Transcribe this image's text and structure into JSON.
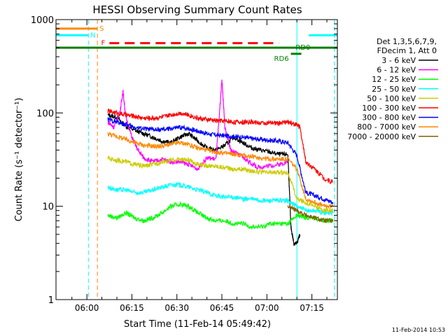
{
  "chart_data": {
    "type": "line",
    "title": "HESSI Observing Summary Count Rates",
    "xlabel": "Start Time (11-Feb-14 05:49:42)",
    "ylabel": "Count Rate (s⁻¹ detector⁻¹)",
    "yscale": "log",
    "ylim": [
      1,
      1000
    ],
    "xlim_minutes": [
      349.7,
      443.5
    ],
    "x_ticks": [
      {
        "label": "06:00",
        "minutes": 360
      },
      {
        "label": "06:15",
        "minutes": 375
      },
      {
        "label": "06:30",
        "minutes": 390
      },
      {
        "label": "06:45",
        "minutes": 405
      },
      {
        "label": "07:00",
        "minutes": 420
      },
      {
        "label": "07:15",
        "minutes": 435
      }
    ],
    "y_ticks": [
      {
        "label": "1",
        "value": 1
      },
      {
        "label": "10",
        "value": 10
      },
      {
        "label": "100",
        "value": 100
      },
      {
        "label": "1000",
        "value": 1000
      }
    ],
    "legend_header": [
      "Det 1,3,5,6,7,9,",
      "FDecim 1, Att 0"
    ],
    "legend_position": "right",
    "series": [
      {
        "name": "3 - 6 keV",
        "color": "#000000",
        "x": [
          367,
          370,
          373,
          376,
          379,
          382,
          385,
          388,
          391,
          394,
          397,
          400,
          403,
          406,
          409,
          412,
          415,
          418,
          421,
          424,
          427,
          428,
          429,
          430,
          431
        ],
        "y": [
          95,
          90,
          72,
          65,
          60,
          55,
          50,
          48,
          55,
          60,
          50,
          42,
          40,
          45,
          55,
          48,
          42,
          40,
          38,
          36,
          36,
          6,
          4,
          4,
          5
        ]
      },
      {
        "name": "6 - 12 keV",
        "color": "#ff00ff",
        "x": [
          367,
          369,
          371,
          372,
          373,
          375,
          377,
          379,
          382,
          385,
          388,
          391,
          394,
          397,
          400,
          403,
          404,
          405,
          406,
          408,
          411,
          414,
          417,
          420,
          424,
          427
        ],
        "y": [
          80,
          70,
          100,
          170,
          90,
          55,
          40,
          33,
          30,
          32,
          30,
          30,
          28,
          25,
          33,
          32,
          80,
          230,
          70,
          40,
          35,
          30,
          26,
          27,
          28,
          30
        ]
      },
      {
        "name": "12 - 25 keV",
        "color": "#00ff00",
        "x": [
          367,
          370,
          373,
          376,
          379,
          382,
          385,
          388,
          391,
          394,
          397,
          400,
          403,
          406,
          409,
          412,
          415,
          418,
          421,
          424,
          427,
          430,
          433,
          436,
          439,
          442
        ],
        "y": [
          8,
          7.5,
          8.5,
          7.5,
          7,
          7.5,
          8.5,
          10,
          10.5,
          10,
          8.5,
          7.5,
          7,
          7,
          6.5,
          6.5,
          6,
          6,
          6.5,
          6.5,
          6.5,
          8,
          7.5,
          7.5,
          7,
          7
        ]
      },
      {
        "name": "25 - 50 keV",
        "color": "#00ffff",
        "x": [
          367,
          370,
          373,
          376,
          379,
          382,
          385,
          388,
          391,
          394,
          397,
          400,
          403,
          406,
          409,
          412,
          415,
          418,
          421,
          424,
          427,
          430,
          433,
          436,
          439,
          442
        ],
        "y": [
          16,
          15,
          15,
          14,
          14,
          15,
          16,
          17,
          17,
          16,
          15,
          14,
          13,
          12.5,
          12.5,
          12,
          12,
          11.5,
          11.5,
          11.5,
          11.5,
          10,
          9,
          9,
          8.5,
          8.5
        ]
      },
      {
        "name": "50 - 100 keV",
        "color": "#cccc00",
        "x": [
          367,
          370,
          373,
          376,
          379,
          382,
          385,
          388,
          391,
          394,
          397,
          400,
          403,
          406,
          409,
          412,
          415,
          418,
          421,
          424,
          427,
          430,
          433,
          436,
          439,
          442
        ],
        "y": [
          33,
          31,
          30,
          28,
          27,
          28,
          30,
          31,
          32,
          31,
          28,
          27,
          27,
          26,
          25,
          25,
          24,
          23,
          23,
          23,
          23,
          12,
          11,
          10,
          9,
          9
        ]
      },
      {
        "name": "100 - 300 keV",
        "color": "#ff0000",
        "x": [
          367,
          370,
          373,
          376,
          379,
          382,
          385,
          388,
          391,
          394,
          397,
          400,
          403,
          406,
          409,
          412,
          415,
          418,
          421,
          424,
          427,
          430,
          431,
          433,
          436,
          439,
          442
        ],
        "y": [
          105,
          100,
          95,
          92,
          88,
          88,
          90,
          95,
          100,
          95,
          88,
          85,
          83,
          82,
          80,
          80,
          80,
          78,
          78,
          78,
          80,
          75,
          70,
          30,
          25,
          20,
          18
        ]
      },
      {
        "name": "300 - 800 keV",
        "color": "#0000ff",
        "x": [
          367,
          370,
          373,
          376,
          379,
          382,
          385,
          388,
          391,
          394,
          397,
          400,
          403,
          406,
          409,
          412,
          415,
          418,
          421,
          424,
          427,
          430,
          433,
          436,
          439,
          442
        ],
        "y": [
          85,
          80,
          75,
          70,
          68,
          66,
          66,
          68,
          70,
          68,
          64,
          60,
          58,
          57,
          56,
          55,
          53,
          52,
          51,
          50,
          48,
          35,
          14,
          13,
          12,
          11
        ]
      },
      {
        "name": "800 - 7000 keV",
        "color": "#ff8800",
        "x": [
          367,
          370,
          373,
          376,
          379,
          382,
          385,
          388,
          391,
          394,
          397,
          400,
          403,
          406,
          409,
          412,
          415,
          418,
          421,
          424,
          427,
          430,
          433,
          436,
          439,
          442
        ],
        "y": [
          60,
          56,
          52,
          48,
          45,
          44,
          44,
          46,
          48,
          46,
          42,
          40,
          38,
          37,
          36,
          35,
          34,
          33,
          32,
          32,
          32,
          25,
          12,
          11,
          10,
          10
        ]
      },
      {
        "name": "7000 - 20000 keV",
        "color": "#806000",
        "x": [
          427,
          430,
          433,
          436,
          439,
          442
        ],
        "y": [
          10,
          9,
          8,
          7.5,
          7,
          7
        ]
      }
    ],
    "flags": [
      {
        "label": "S",
        "color": "#ff8800",
        "x_start": 349.7,
        "x_end": 363.5,
        "y": 800,
        "dashed": false
      },
      {
        "label": "N",
        "color": "#00ffff",
        "x_start": 349.7,
        "x_end": 360.5,
        "y": 680,
        "dashed": false
      },
      {
        "label": "F",
        "color": "#ff0000",
        "x_start": 367.5,
        "x_end": 424,
        "y": 560,
        "dashed": true
      },
      {
        "label": "RD0",
        "color": "#008000",
        "x_start": 349.7,
        "x_end": 443.5,
        "y": 500,
        "dashed": false
      },
      {
        "label": "RD6",
        "color": "#008000",
        "x_start": 428,
        "x_end": 431.5,
        "y": 430,
        "dashed": false
      },
      {
        "label": "",
        "color": "#00ffff",
        "x_start": 434,
        "x_end": 443.5,
        "y": 680,
        "dashed": false
      }
    ],
    "vertical_lines": [
      {
        "x": 349.7,
        "color": "#00ffff",
        "dashed": false
      },
      {
        "x": 360.5,
        "color": "#00ffff",
        "dashed": true
      },
      {
        "x": 363.5,
        "color": "#ff8800",
        "dashed": true
      },
      {
        "x": 430,
        "color": "#00ffff",
        "dashed": false
      },
      {
        "x": 442.5,
        "color": "#00ffff",
        "dashed": true
      }
    ],
    "grid": false
  },
  "timestamp": "11-Feb-2014 10:53"
}
